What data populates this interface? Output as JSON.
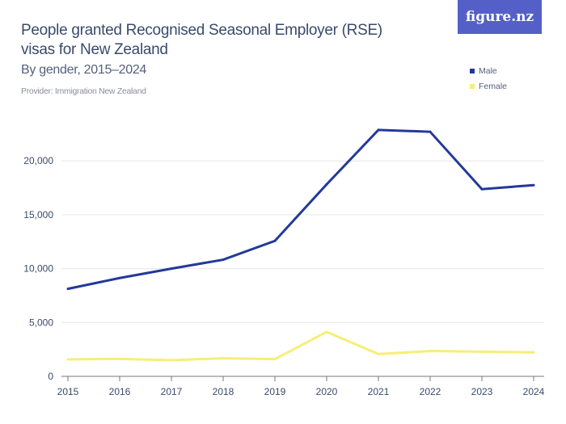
{
  "header": {
    "title": "People granted Recognised Seasonal Employer (RSE) visas for New Zealand",
    "subtitle": "By gender, 2015–2024",
    "provider": "Provider: Immigration New Zealand",
    "logo": "figure.nz"
  },
  "chart_data": {
    "type": "line",
    "title": "People granted Recognised Seasonal Employer (RSE) visas for New Zealand",
    "subtitle": "By gender, 2015–2024",
    "x": [
      2015,
      2016,
      2017,
      2018,
      2019,
      2020,
      2021,
      2022,
      2023,
      2024
    ],
    "x_tick_labels": [
      "2015",
      "2016",
      "2017",
      "2018",
      "2019",
      "2020",
      "2021",
      "2022",
      "2023",
      "2024"
    ],
    "y_ticks": [
      0,
      5000,
      10000,
      15000,
      20000
    ],
    "y_tick_labels": [
      "0",
      "5,000",
      "10,000",
      "15,000",
      "20,000"
    ],
    "ylim": [
      0,
      23000
    ],
    "grid": true,
    "legend_position": "top-right",
    "series": [
      {
        "name": "Male",
        "color": "#23399a",
        "values": [
          8125,
          9125,
          10000,
          10825,
          12575,
          17825,
          22875,
          22700,
          17375,
          17750
        ]
      },
      {
        "name": "Female",
        "color": "#f7ee76",
        "values": [
          1575,
          1625,
          1500,
          1675,
          1600,
          4125,
          2075,
          2350,
          2300,
          2225
        ]
      }
    ]
  }
}
